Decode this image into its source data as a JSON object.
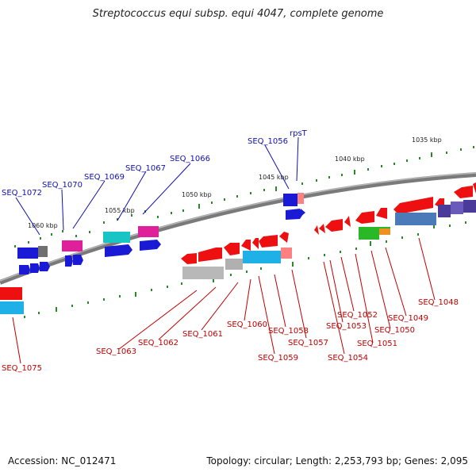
{
  "title": "Streptococcus equi subsp. equi 4047, complete genome",
  "footer": {
    "accession": "Accession: NC_012471",
    "summary": "Topology: circular; Length: 2,253,793 bp; Genes: 2,095"
  },
  "kbp_labels": [
    "1035 kbp",
    "1040 kbp",
    "1045 kbp",
    "1050 kbp",
    "1055 kbp",
    "1060 kbp"
  ],
  "genes_upper": [
    "SEQ_1072",
    "SEQ_1070",
    "SEQ_1069",
    "SEQ_1067",
    "SEQ_1066",
    "SEQ_1056",
    "rpsT"
  ],
  "genes_lower": [
    "SEQ_1075",
    "SEQ_1063",
    "SEQ_1062",
    "SEQ_1061",
    "SEQ_1060",
    "SEQ_1059",
    "SEQ_1058",
    "SEQ_1057",
    "SEQ_1054",
    "SEQ_1053",
    "SEQ_1052",
    "SEQ_1051",
    "SEQ_1050",
    "SEQ_1049",
    "SEQ_1048"
  ],
  "colors": {
    "backbone": "#7a7a7a",
    "label_upper": "#1010b0",
    "label_lower": "#c00000",
    "tick": "#2a8a2a"
  }
}
